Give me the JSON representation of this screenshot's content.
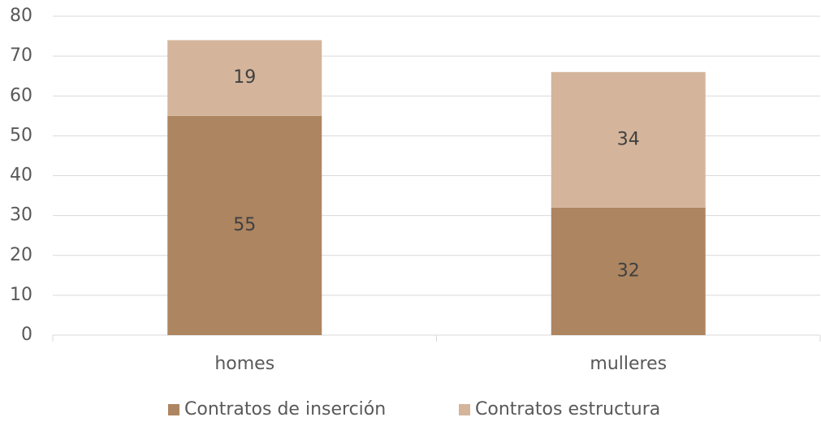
{
  "chart_data": {
    "type": "bar",
    "stacked": true,
    "categories": [
      "homes",
      "mulleres"
    ],
    "series": [
      {
        "name": "Contratos de inserción",
        "color": "#ad8560",
        "values": [
          55,
          32
        ]
      },
      {
        "name": "Contratos estructura",
        "color": "#d4b59b",
        "values": [
          19,
          34
        ]
      }
    ],
    "ylim": [
      0,
      80
    ],
    "yticks": [
      0,
      10,
      20,
      30,
      40,
      50,
      60,
      70,
      80
    ],
    "grid": true,
    "legend": "bottom"
  }
}
